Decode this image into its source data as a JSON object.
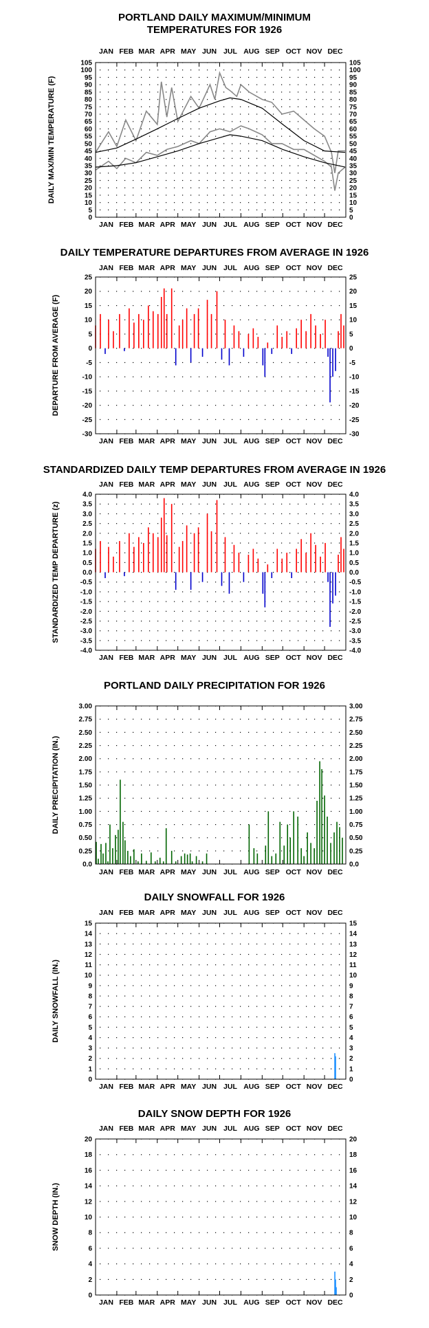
{
  "chart_data": [
    {
      "type": "line",
      "title": "PORTLAND DAILY MAXIMUM/MINIMUM",
      "subtitle": "TEMPERATURES FOR 1926",
      "ylabel": "DAILY MAX/MIN TEMPERATURE (F)",
      "months": [
        "JAN",
        "FEB",
        "MAR",
        "APR",
        "MAY",
        "JUN",
        "JUL",
        "AUG",
        "SEP",
        "OCT",
        "NOV",
        "DEC"
      ],
      "ylim": [
        0,
        105
      ],
      "yticks": [
        "0",
        "5",
        "10",
        "15",
        "20",
        "25",
        "30",
        "35",
        "40",
        "45",
        "50",
        "55",
        "60",
        "65",
        "70",
        "75",
        "80",
        "85",
        "90",
        "95",
        "100",
        "105"
      ],
      "grid": "dotted",
      "series": [
        {
          "kind": "observed_max",
          "color": "#888888",
          "x": [
            1,
            20,
            32,
            45,
            60,
            75,
            91,
            97,
            105,
            112,
            121,
            140,
            152,
            168,
            175,
            182,
            191,
            197,
            207,
            213,
            225,
            244,
            258,
            273,
            290,
            305,
            320,
            335,
            345,
            350,
            355,
            365
          ],
          "values": [
            44,
            58,
            48,
            66,
            52,
            72,
            63,
            92,
            68,
            88,
            65,
            82,
            74,
            90,
            80,
            98,
            88,
            86,
            82,
            90,
            85,
            80,
            78,
            70,
            72,
            66,
            60,
            55,
            44,
            30,
            45,
            45
          ]
        },
        {
          "kind": "observed_min",
          "color": "#888888",
          "x": [
            1,
            20,
            32,
            45,
            60,
            75,
            91,
            105,
            121,
            140,
            152,
            168,
            182,
            197,
            213,
            225,
            244,
            258,
            273,
            290,
            305,
            320,
            335,
            345,
            350,
            355,
            365
          ],
          "values": [
            32,
            38,
            33,
            40,
            37,
            44,
            42,
            46,
            48,
            52,
            50,
            58,
            60,
            58,
            62,
            60,
            56,
            50,
            50,
            46,
            46,
            42,
            38,
            34,
            18,
            30,
            34
          ]
        },
        {
          "kind": "normal_max",
          "color": "#000000",
          "x": [
            1,
            32,
            60,
            91,
            121,
            152,
            182,
            197,
            213,
            244,
            274,
            305,
            335,
            365
          ],
          "values": [
            44,
            47,
            53,
            60,
            67,
            74,
            79,
            81,
            80,
            74,
            63,
            52,
            45,
            44
          ]
        },
        {
          "kind": "normal_min",
          "color": "#000000",
          "x": [
            1,
            32,
            60,
            91,
            121,
            152,
            182,
            197,
            213,
            244,
            274,
            305,
            335,
            365
          ],
          "values": [
            34,
            35,
            37,
            41,
            45,
            50,
            54,
            56,
            55,
            52,
            46,
            41,
            37,
            34
          ]
        }
      ]
    },
    {
      "type": "bar",
      "title": "DAILY TEMPERATURE DEPARTURES FROM AVERAGE IN 1926",
      "ylabel": "DEPARTURE FROM AVERAGE (F)",
      "months": [
        "JAN",
        "FEB",
        "MAR",
        "APR",
        "MAY",
        "JUN",
        "JUL",
        "AUG",
        "SEP",
        "OCT",
        "NOV",
        "DEC"
      ],
      "ylim": [
        -30,
        25
      ],
      "yticks": [
        "-30",
        "-25",
        "-20",
        "-15",
        "-10",
        "-5",
        "0",
        "5",
        "10",
        "15",
        "20",
        "25"
      ],
      "grid": "dotted",
      "positive_color": "#ff0000",
      "negative_color": "#0000cc",
      "x": [
        1,
        8,
        15,
        20,
        27,
        36,
        43,
        50,
        57,
        64,
        71,
        78,
        85,
        92,
        97,
        101,
        105,
        112,
        118,
        123,
        128,
        134,
        140,
        145,
        151,
        157,
        164,
        170,
        178,
        185,
        190,
        196,
        203,
        210,
        217,
        224,
        231,
        238,
        245,
        248,
        252,
        258,
        266,
        273,
        280,
        287,
        294,
        301,
        308,
        315,
        322,
        329,
        336,
        340,
        343,
        347,
        351,
        355,
        359,
        363
      ],
      "values": [
        8,
        12,
        -2,
        10,
        6,
        12,
        -1,
        14,
        9,
        12,
        10,
        15,
        13,
        12,
        18,
        21,
        12,
        21,
        -6,
        8,
        10,
        14,
        -5,
        12,
        14,
        -3,
        17,
        12,
        20,
        -4,
        10,
        -6,
        8,
        6,
        -3,
        5,
        7,
        4,
        -6,
        -10,
        2,
        -2,
        8,
        4,
        6,
        -2,
        7,
        10,
        6,
        12,
        8,
        5,
        10,
        -3,
        -19,
        -10,
        -8,
        6,
        12,
        8
      ]
    },
    {
      "type": "bar",
      "title": "STANDARDIZED DAILY TEMP DEPARTURES FROM AVERAGE IN 1926",
      "ylabel": "STANDARDIZED TEMP DEPARTURE (z)",
      "months": [
        "JAN",
        "FEB",
        "MAR",
        "APR",
        "MAY",
        "JUN",
        "JUL",
        "AUG",
        "SEP",
        "OCT",
        "NOV",
        "DEC"
      ],
      "ylim": [
        -4.0,
        4.0
      ],
      "yticks": [
        "-4.0",
        "-3.5",
        "-3.0",
        "-2.5",
        "-2.0",
        "-1.5",
        "-1.0",
        "-0.5",
        "0.0",
        "0.5",
        "1.0",
        "1.5",
        "2.0",
        "2.5",
        "3.0",
        "3.5",
        "4.0"
      ],
      "grid": "dotted",
      "positive_color": "#ff0000",
      "negative_color": "#0000cc",
      "x": [
        1,
        8,
        15,
        20,
        27,
        36,
        43,
        50,
        57,
        64,
        71,
        78,
        85,
        92,
        97,
        101,
        105,
        112,
        118,
        123,
        128,
        134,
        140,
        145,
        151,
        157,
        164,
        170,
        178,
        185,
        190,
        196,
        203,
        210,
        217,
        224,
        231,
        238,
        245,
        248,
        252,
        258,
        266,
        273,
        280,
        287,
        294,
        301,
        308,
        315,
        322,
        329,
        336,
        340,
        343,
        347,
        351,
        355,
        359,
        363
      ],
      "values": [
        1.2,
        1.6,
        -0.3,
        1.3,
        0.8,
        1.6,
        -0.2,
        2.0,
        1.3,
        1.8,
        1.5,
        2.3,
        2.0,
        1.8,
        2.8,
        3.8,
        1.9,
        3.5,
        -0.9,
        1.3,
        1.6,
        2.4,
        -0.9,
        2.0,
        2.3,
        -0.5,
        3.0,
        2.1,
        3.7,
        -0.7,
        1.8,
        -1.1,
        1.4,
        1.0,
        -0.5,
        0.9,
        1.2,
        0.7,
        -1.1,
        -1.8,
        0.4,
        -0.3,
        1.2,
        0.7,
        1.0,
        -0.3,
        1.2,
        1.7,
        1.0,
        2.0,
        1.4,
        0.8,
        1.5,
        -0.5,
        -2.8,
        -1.6,
        -1.2,
        0.9,
        1.8,
        1.2
      ]
    },
    {
      "type": "bar",
      "title": "PORTLAND DAILY PRECIPITATION FOR 1926",
      "ylabel": "DAILY PRECIPITATION (IN.)",
      "months": [
        "JAN",
        "FEB",
        "MAR",
        "APR",
        "MAY",
        "JUN",
        "JUL",
        "AUG",
        "SEP",
        "OCT",
        "NOV",
        "DEC"
      ],
      "ylim": [
        0,
        3.0
      ],
      "yticks": [
        "0.0",
        "0.25",
        "0.50",
        "0.75",
        "1.00",
        "1.25",
        "1.50",
        "1.75",
        "2.00",
        "2.25",
        "2.50",
        "2.75",
        "3.00"
      ],
      "grid": "dotted",
      "color": "#006400",
      "x": [
        2,
        5,
        9,
        12,
        16,
        19,
        22,
        26,
        30,
        34,
        37,
        41,
        44,
        48,
        52,
        57,
        63,
        68,
        75,
        82,
        88,
        95,
        100,
        104,
        112,
        118,
        126,
        131,
        135,
        139,
        142,
        148,
        157,
        163,
        225,
        232,
        237,
        249,
        253,
        258,
        264,
        270,
        276,
        281,
        285,
        290,
        296,
        301,
        305,
        310,
        315,
        320,
        324,
        328,
        331,
        335,
        339,
        344,
        349,
        353,
        357,
        361
      ],
      "values": [
        0.42,
        0.1,
        0.38,
        0.2,
        0.4,
        0.05,
        0.75,
        0.3,
        0.55,
        0.65,
        1.6,
        0.8,
        0.45,
        0.25,
        0.15,
        0.28,
        0.05,
        0.2,
        0.06,
        0.22,
        0.05,
        0.12,
        0.05,
        0.68,
        0.25,
        0.05,
        0.15,
        0.2,
        0.18,
        0.2,
        0.05,
        0.15,
        0.05,
        0.2,
        0.75,
        0.3,
        0.2,
        0.35,
        1.0,
        0.15,
        0.2,
        0.8,
        0.35,
        0.75,
        0.5,
        1.0,
        0.9,
        0.3,
        0.15,
        0.6,
        0.4,
        0.3,
        1.2,
        1.95,
        1.8,
        1.3,
        0.9,
        0.4,
        0.6,
        0.8,
        0.7,
        0.5
      ]
    },
    {
      "type": "bar",
      "title": "DAILY SNOWFALL FOR 1926",
      "ylabel": "DAILY SNOWFALL (IN.)",
      "months": [
        "JAN",
        "FEB",
        "MAR",
        "APR",
        "MAY",
        "JUN",
        "JUL",
        "AUG",
        "SEP",
        "OCT",
        "NOV",
        "DEC"
      ],
      "ylim": [
        0,
        15
      ],
      "yticks": [
        "0",
        "1",
        "2",
        "3",
        "4",
        "5",
        "6",
        "7",
        "8",
        "9",
        "10",
        "11",
        "12",
        "13",
        "14",
        "15"
      ],
      "grid": "dotted",
      "color": "#1e90ff",
      "x": [
        350,
        351
      ],
      "values": [
        2.5,
        2.2
      ]
    },
    {
      "type": "bar",
      "title": "DAILY SNOW DEPTH FOR 1926",
      "ylabel": "SNOW DEPTH (IN.)",
      "months": [
        "JAN",
        "FEB",
        "MAR",
        "APR",
        "MAY",
        "JUN",
        "JUL",
        "AUG",
        "SEP",
        "OCT",
        "NOV",
        "DEC"
      ],
      "ylim": [
        0,
        20
      ],
      "yticks": [
        "0",
        "2",
        "4",
        "6",
        "8",
        "10",
        "12",
        "14",
        "16",
        "18",
        "20"
      ],
      "grid": "dotted",
      "color": "#1e90ff",
      "x": [
        350,
        351,
        352
      ],
      "values": [
        3,
        2,
        1
      ]
    }
  ]
}
